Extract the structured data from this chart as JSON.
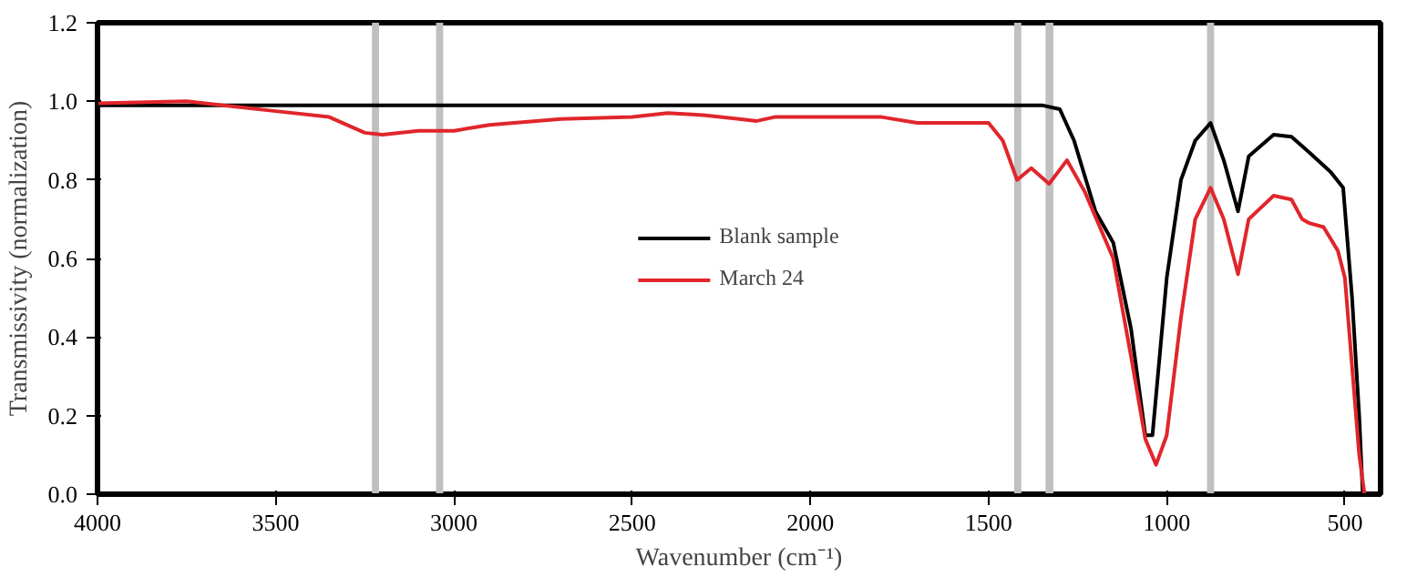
{
  "chart_data": {
    "type": "line",
    "xlabel": "Wavenumber (cm⁻¹)",
    "ylabel": "Transmissivity (normalization)",
    "xlim": [
      4000,
      400
    ],
    "ylim": [
      0,
      1.2
    ],
    "xticks": [
      4000,
      3500,
      3000,
      2500,
      2000,
      1500,
      1000,
      500
    ],
    "yticks": [
      {
        "value": 0,
        "label": "0.0"
      },
      {
        "value": 0.2,
        "label": "0.2"
      },
      {
        "value": 0.4,
        "label": "0.4"
      },
      {
        "value": 0.6,
        "label": "0.6"
      },
      {
        "value": 0.8,
        "label": "0.8"
      },
      {
        "value": 1.0,
        "label": "1.0"
      },
      {
        "value": 1.2,
        "label": "1.2"
      }
    ],
    "grid": false,
    "legend": "center",
    "line_style": "solid",
    "marker": "none",
    "bands": [
      {
        "axis": "x",
        "from": 3230,
        "to": 3210,
        "color": "#c0c0c0"
      },
      {
        "axis": "x",
        "from": 3050,
        "to": 3030,
        "color": "#c0c0c0"
      },
      {
        "axis": "x",
        "from": 1428,
        "to": 1408,
        "color": "#c0c0c0"
      },
      {
        "axis": "x",
        "from": 1340,
        "to": 1318,
        "color": "#c0c0c0"
      },
      {
        "axis": "x",
        "from": 887,
        "to": 867,
        "color": "#c0c0c0"
      }
    ],
    "series": [
      {
        "name": "Blank sample",
        "color": "#000000",
        "x": [
          4000,
          3500,
          3000,
          2500,
          2000,
          1500,
          1350,
          1300,
          1260,
          1200,
          1150,
          1100,
          1060,
          1040,
          1000,
          960,
          920,
          877,
          840,
          800,
          770,
          700,
          650,
          600,
          540,
          505,
          480,
          460,
          450
        ],
        "values": [
          0.99,
          0.99,
          0.99,
          0.99,
          0.99,
          0.99,
          0.99,
          0.98,
          0.9,
          0.72,
          0.64,
          0.42,
          0.15,
          0.15,
          0.55,
          0.8,
          0.9,
          0.945,
          0.85,
          0.72,
          0.86,
          0.915,
          0.91,
          0.87,
          0.82,
          0.78,
          0.5,
          0.2,
          0.0
        ]
      },
      {
        "name": "March 24",
        "color": "#e0262b",
        "x": [
          4000,
          3750,
          3500,
          3350,
          3250,
          3200,
          3100,
          3000,
          2900,
          2700,
          2500,
          2400,
          2300,
          2200,
          2150,
          2100,
          1900,
          1800,
          1700,
          1600,
          1500,
          1460,
          1420,
          1380,
          1330,
          1280,
          1230,
          1150,
          1100,
          1060,
          1030,
          1000,
          960,
          920,
          877,
          840,
          800,
          770,
          700,
          650,
          620,
          600,
          560,
          520,
          500,
          460,
          445
        ],
        "values": [
          0.995,
          1.0,
          0.975,
          0.96,
          0.92,
          0.915,
          0.925,
          0.925,
          0.94,
          0.955,
          0.96,
          0.97,
          0.965,
          0.955,
          0.95,
          0.96,
          0.96,
          0.96,
          0.945,
          0.945,
          0.945,
          0.9,
          0.8,
          0.83,
          0.79,
          0.85,
          0.77,
          0.6,
          0.35,
          0.14,
          0.075,
          0.15,
          0.45,
          0.7,
          0.78,
          0.7,
          0.56,
          0.7,
          0.76,
          0.75,
          0.7,
          0.69,
          0.68,
          0.62,
          0.55,
          0.1,
          0.0
        ]
      }
    ]
  }
}
